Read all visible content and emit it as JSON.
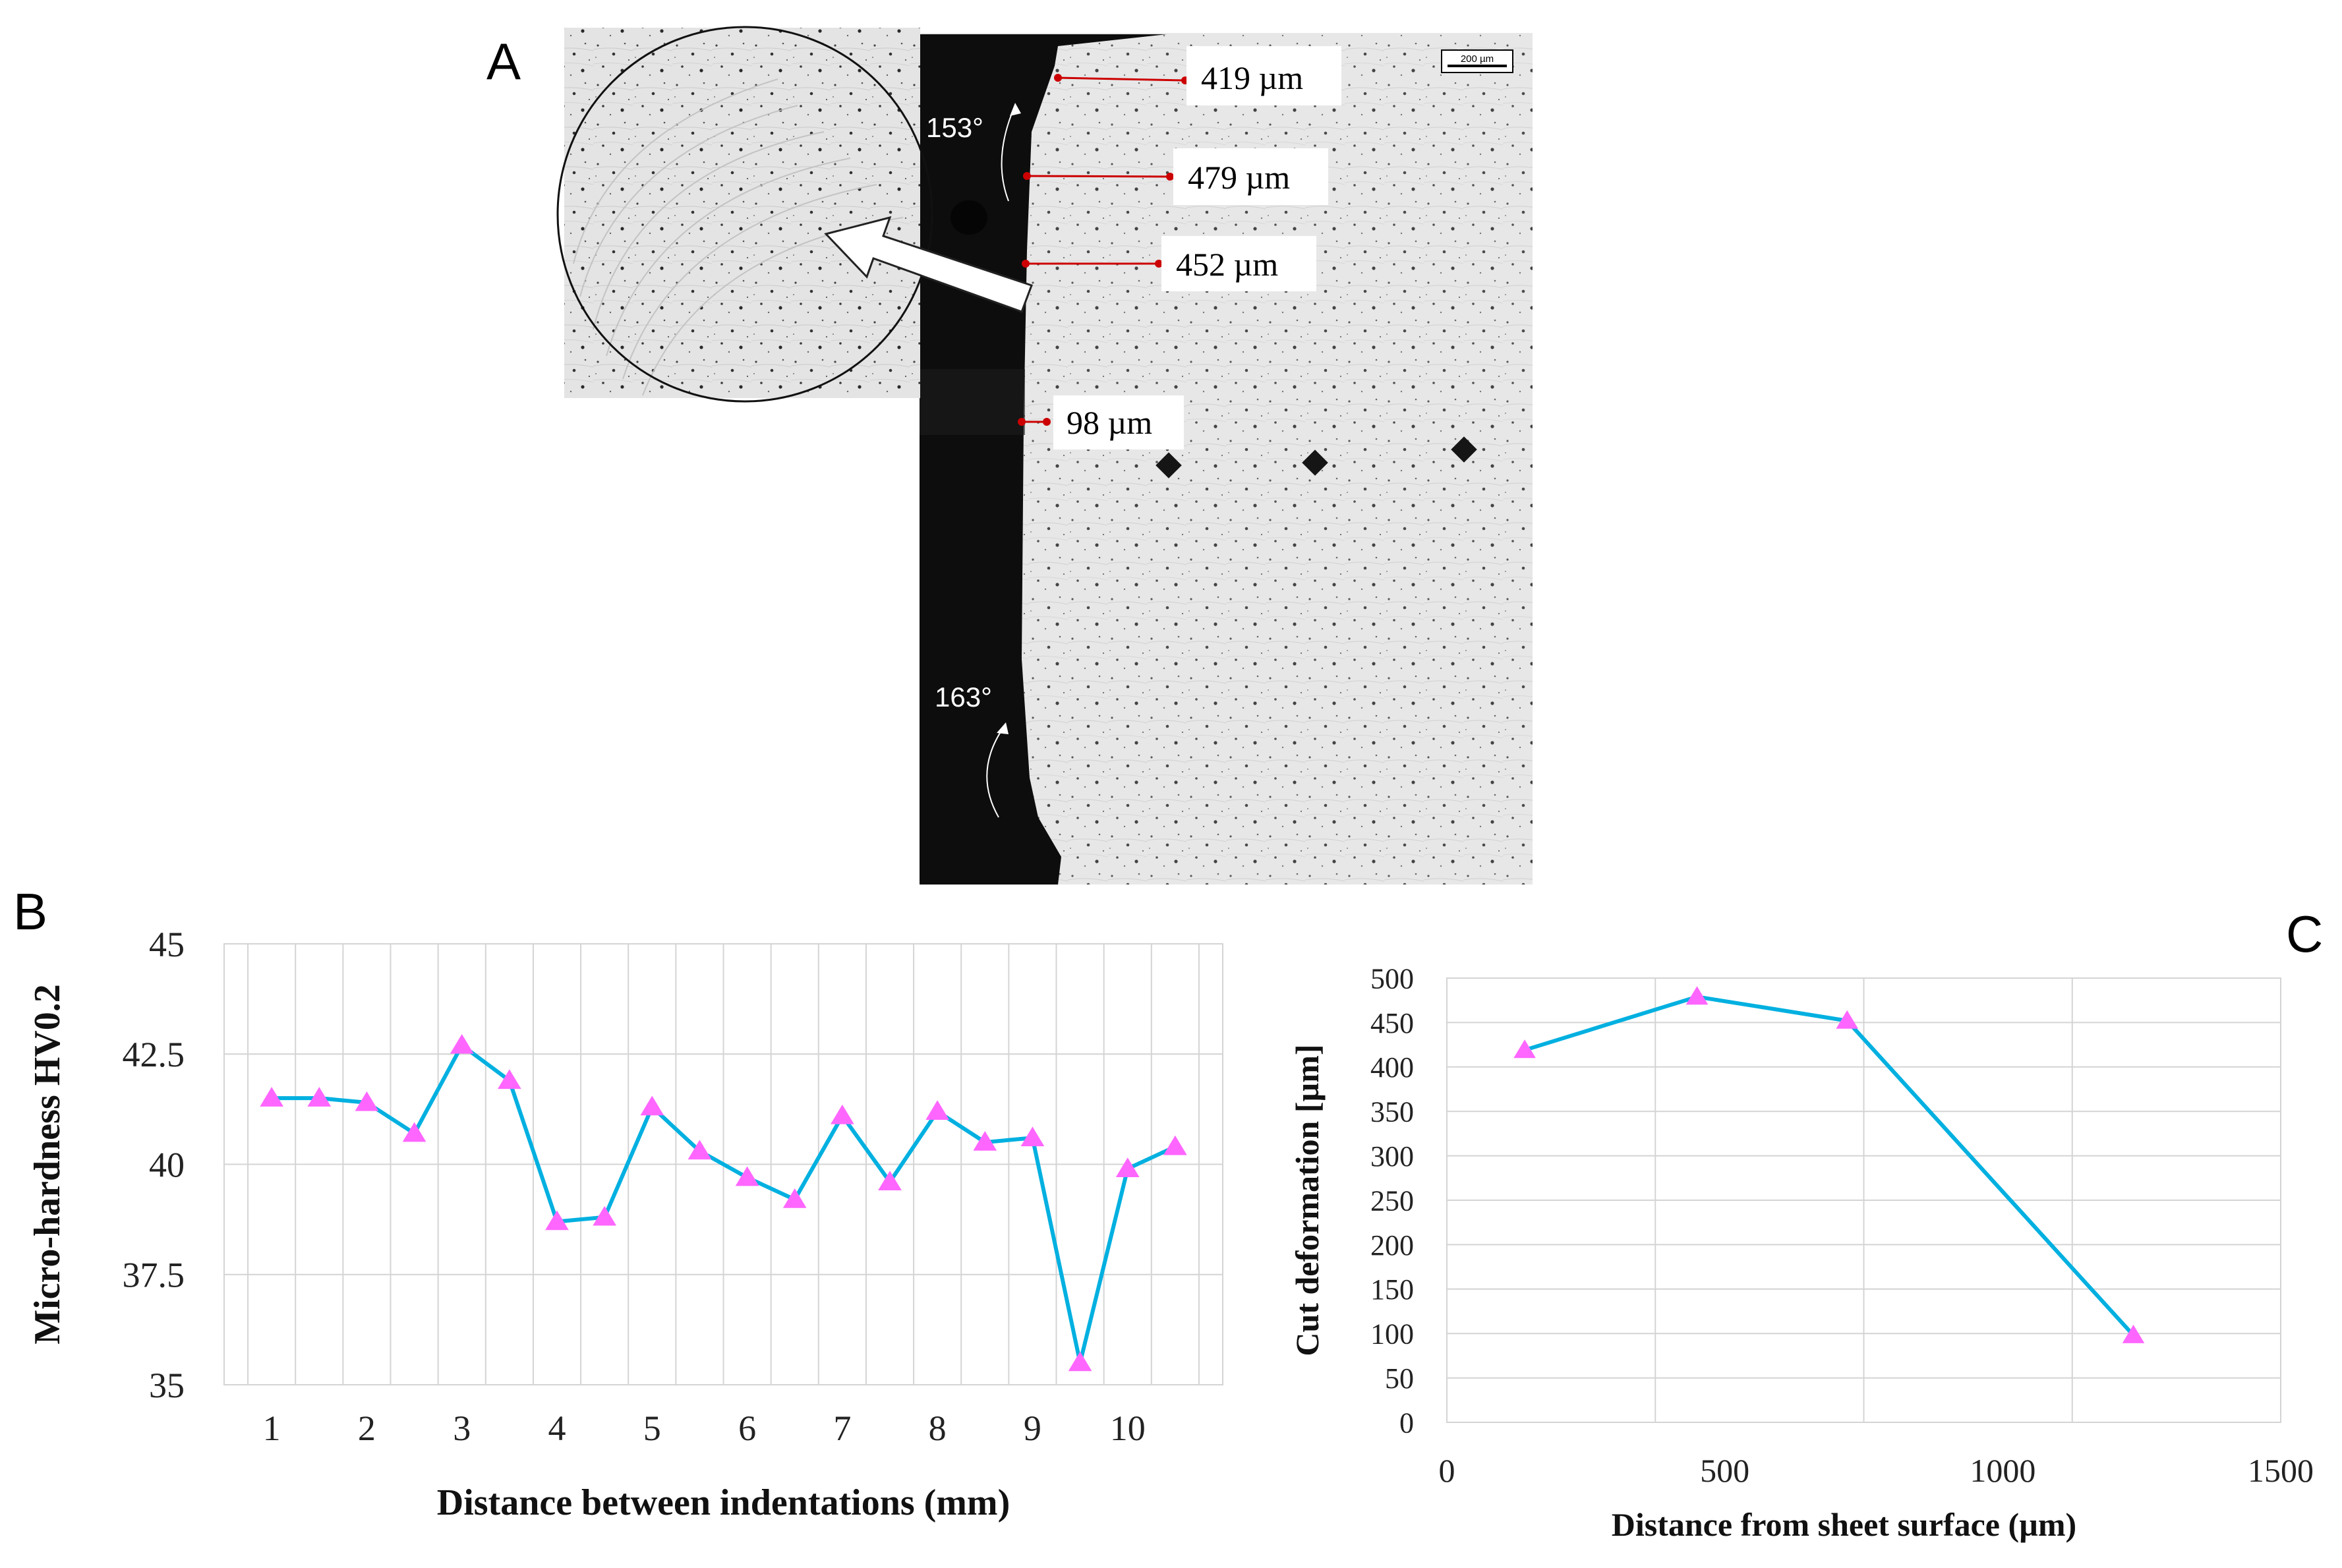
{
  "figure": {
    "panel_labels": {
      "a": "A",
      "b": "B",
      "c": "C"
    }
  },
  "micrograph": {
    "scale_bar": "200 µm",
    "measurements": [
      {
        "label": "419 µm"
      },
      {
        "label": "479 µm"
      },
      {
        "label": "452 µm"
      },
      {
        "label": "98 µm"
      }
    ],
    "angles": [
      "153°",
      "163°"
    ],
    "colors": {
      "measure": "#cc0000",
      "matrix": "#e6e6e6",
      "mount": "#0d0d0d"
    }
  },
  "chart_data": [
    {
      "id": "B",
      "type": "line",
      "xlabel": "Distance between indentations (mm)",
      "ylabel": "Micro-hardness HV0.2",
      "x": [
        1,
        1.5,
        2,
        2.5,
        3,
        3.5,
        4,
        4.5,
        5,
        5.5,
        6,
        6.5,
        7,
        7.5,
        8,
        8.5,
        9,
        9.5,
        10,
        10.5
      ],
      "series": [
        {
          "name": "HV0.2",
          "values": [
            41.5,
            41.5,
            41.4,
            40.7,
            42.7,
            41.9,
            38.7,
            38.8,
            41.3,
            40.3,
            39.7,
            39.2,
            41.1,
            39.6,
            41.2,
            40.5,
            40.6,
            35.5,
            39.9,
            40.4
          ]
        }
      ],
      "xticks": [
        "1",
        "2",
        "3",
        "4",
        "5",
        "6",
        "7",
        "8",
        "9",
        "10"
      ],
      "yticks": [
        "35",
        "37.5",
        "40",
        "42.5",
        "45"
      ],
      "xlim": [
        0.5,
        11.0
      ],
      "ylim": [
        35,
        45
      ],
      "grid": true,
      "line_color": "#00b0e0",
      "marker_color": "#ff66ff"
    },
    {
      "id": "C",
      "type": "line",
      "xlabel": "Distance from sheet surface (µm)",
      "ylabel": "Cut deformation [µm]",
      "x": [
        140,
        450,
        720,
        1235
      ],
      "series": [
        {
          "name": "Cut deformation",
          "values": [
            419,
            479,
            452,
            98
          ]
        }
      ],
      "xticks": [
        "0",
        "500",
        "1000",
        "1500"
      ],
      "yticks": [
        "0",
        "50",
        "100",
        "150",
        "200",
        "250",
        "300",
        "350",
        "400",
        "450",
        "500"
      ],
      "xlim": [
        0,
        1500
      ],
      "ylim": [
        0,
        500
      ],
      "grid": true,
      "line_color": "#00b0e0",
      "marker_color": "#ff66ff"
    }
  ]
}
